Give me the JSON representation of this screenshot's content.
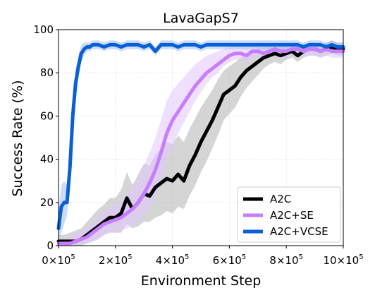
{
  "chart_data": {
    "type": "line",
    "title": "LavaGapS7",
    "xlabel": "Environment Step",
    "ylabel": "Success Rate (%)",
    "xlim": [
      0,
      1000000
    ],
    "ylim": [
      0,
      100
    ],
    "grid": true,
    "legend_position": "bottom-right",
    "x_ticks": [
      {
        "value": 0,
        "base": "0×10",
        "exp": "5"
      },
      {
        "value": 200000,
        "base": "2×10",
        "exp": "5"
      },
      {
        "value": 400000,
        "base": "4×10",
        "exp": "5"
      },
      {
        "value": 600000,
        "base": "6×10",
        "exp": "5"
      },
      {
        "value": 800000,
        "base": "8×10",
        "exp": "5"
      },
      {
        "value": 1000000,
        "base": "10×10",
        "exp": "5"
      }
    ],
    "y_ticks": [
      {
        "value": 0,
        "label": "0"
      },
      {
        "value": 20,
        "label": "20"
      },
      {
        "value": 40,
        "label": "40"
      },
      {
        "value": 60,
        "label": "60"
      },
      {
        "value": 80,
        "label": "80"
      },
      {
        "value": 100,
        "label": "100"
      }
    ],
    "series": [
      {
        "name": "A2C",
        "color": "#000000",
        "band_color": "#b3b3b3",
        "x": [
          0,
          20000,
          40000,
          60000,
          80000,
          100000,
          120000,
          140000,
          160000,
          180000,
          200000,
          220000,
          240000,
          260000,
          280000,
          300000,
          320000,
          340000,
          360000,
          380000,
          400000,
          420000,
          440000,
          460000,
          480000,
          500000,
          520000,
          540000,
          560000,
          580000,
          600000,
          620000,
          640000,
          660000,
          680000,
          700000,
          720000,
          740000,
          760000,
          780000,
          800000,
          820000,
          840000,
          860000,
          880000,
          900000,
          920000,
          940000,
          960000,
          980000,
          1000000
        ],
        "values": [
          2,
          2,
          2,
          2,
          3,
          5,
          7,
          9,
          11,
          13,
          13,
          15,
          22,
          17,
          20,
          24,
          23,
          27,
          29,
          31,
          30,
          33,
          30,
          37,
          42,
          48,
          53,
          58,
          64,
          70,
          72,
          74,
          78,
          81,
          83,
          85,
          87,
          88,
          89,
          88,
          89,
          90,
          88,
          90,
          91,
          91,
          90,
          91,
          92,
          91,
          91
        ],
        "lower": [
          0,
          0,
          0,
          0,
          0,
          1,
          2,
          3,
          5,
          6,
          6,
          6,
          10,
          8,
          9,
          11,
          11,
          13,
          14,
          16,
          15,
          18,
          17,
          23,
          28,
          34,
          39,
          45,
          51,
          58,
          61,
          64,
          69,
          73,
          76,
          79,
          82,
          84,
          85,
          84,
          86,
          87,
          85,
          87,
          88,
          88,
          87,
          88,
          89,
          88,
          88
        ],
        "upper": [
          5,
          5,
          6,
          7,
          8,
          11,
          14,
          17,
          19,
          22,
          22,
          26,
          34,
          28,
          33,
          38,
          37,
          42,
          45,
          48,
          47,
          51,
          48,
          54,
          59,
          64,
          68,
          72,
          77,
          81,
          83,
          85,
          87,
          89,
          90,
          91,
          92,
          92,
          93,
          92,
          93,
          93,
          92,
          93,
          94,
          94,
          93,
          94,
          95,
          94,
          94
        ]
      },
      {
        "name": "A2C+SE",
        "color": "#c77dff",
        "band_color": "#e3c6ff",
        "x": [
          0,
          20000,
          40000,
          60000,
          80000,
          100000,
          120000,
          140000,
          160000,
          180000,
          200000,
          220000,
          240000,
          260000,
          280000,
          300000,
          320000,
          340000,
          360000,
          380000,
          400000,
          420000,
          440000,
          460000,
          480000,
          500000,
          520000,
          540000,
          560000,
          580000,
          600000,
          620000,
          640000,
          660000,
          680000,
          700000,
          720000,
          740000,
          760000,
          780000,
          800000,
          820000,
          840000,
          860000,
          880000,
          900000,
          920000,
          940000,
          960000,
          980000,
          1000000
        ],
        "values": [
          1,
          1,
          1,
          2,
          3,
          4,
          6,
          8,
          10,
          11,
          12,
          13,
          15,
          17,
          20,
          24,
          29,
          35,
          43,
          52,
          58,
          62,
          66,
          70,
          74,
          77,
          80,
          82,
          84,
          86,
          88,
          89,
          89,
          88,
          90,
          90,
          89,
          90,
          91,
          90,
          90,
          91,
          91,
          90,
          91,
          91,
          90,
          91,
          90,
          90,
          90
        ],
        "lower": [
          0,
          0,
          0,
          0,
          1,
          1,
          2,
          3,
          5,
          6,
          6,
          7,
          8,
          9,
          11,
          14,
          18,
          23,
          30,
          39,
          46,
          52,
          57,
          62,
          67,
          71,
          75,
          78,
          80,
          83,
          85,
          86,
          86,
          85,
          87,
          87,
          86,
          87,
          88,
          87,
          87,
          88,
          88,
          87,
          88,
          88,
          87,
          88,
          87,
          87,
          87
        ],
        "upper": [
          3,
          3,
          4,
          6,
          7,
          8,
          11,
          14,
          16,
          18,
          19,
          21,
          24,
          27,
          31,
          37,
          43,
          50,
          58,
          67,
          72,
          75,
          78,
          81,
          84,
          86,
          88,
          89,
          90,
          91,
          92,
          93,
          93,
          92,
          93,
          93,
          92,
          93,
          94,
          93,
          93,
          94,
          94,
          93,
          94,
          94,
          93,
          94,
          93,
          93,
          93
        ]
      },
      {
        "name": "A2C+VCSE",
        "color": "#0b5fd6",
        "band_color": "#9ec1f0",
        "x": [
          0,
          10000,
          20000,
          30000,
          40000,
          50000,
          60000,
          70000,
          80000,
          90000,
          100000,
          110000,
          120000,
          140000,
          160000,
          180000,
          200000,
          220000,
          240000,
          260000,
          280000,
          300000,
          320000,
          340000,
          360000,
          380000,
          400000,
          420000,
          440000,
          460000,
          480000,
          500000,
          520000,
          540000,
          560000,
          580000,
          600000,
          620000,
          640000,
          660000,
          680000,
          700000,
          720000,
          740000,
          760000,
          780000,
          800000,
          820000,
          840000,
          860000,
          880000,
          900000,
          920000,
          940000,
          960000,
          980000,
          1000000
        ],
        "values": [
          8,
          18,
          20,
          20,
          36,
          60,
          75,
          83,
          89,
          91,
          92,
          92,
          93,
          93,
          92,
          93,
          93,
          92,
          93,
          93,
          93,
          92,
          93,
          90,
          93,
          93,
          93,
          92,
          93,
          93,
          93,
          92,
          93,
          93,
          93,
          93,
          93,
          93,
          93,
          93,
          93,
          93,
          93,
          93,
          93,
          93,
          93,
          93,
          93,
          92,
          93,
          93,
          93,
          92,
          93,
          92,
          92
        ],
        "lower": [
          0,
          6,
          10,
          14,
          26,
          50,
          68,
          78,
          85,
          88,
          90,
          90,
          91,
          91,
          90,
          91,
          91,
          90,
          91,
          91,
          91,
          90,
          91,
          88,
          91,
          91,
          91,
          90,
          91,
          91,
          91,
          90,
          91,
          91,
          91,
          91,
          91,
          91,
          91,
          91,
          91,
          91,
          91,
          91,
          91,
          91,
          91,
          91,
          91,
          90,
          91,
          91,
          91,
          90,
          91,
          90,
          90
        ],
        "upper": [
          16,
          28,
          30,
          28,
          46,
          70,
          82,
          88,
          93,
          94,
          94,
          94,
          95,
          95,
          94,
          95,
          95,
          94,
          95,
          95,
          95,
          94,
          95,
          92,
          95,
          95,
          95,
          94,
          95,
          95,
          95,
          94,
          95,
          95,
          95,
          95,
          95,
          95,
          95,
          95,
          95,
          95,
          95,
          95,
          95,
          95,
          95,
          95,
          95,
          94,
          95,
          95,
          95,
          94,
          95,
          94,
          94
        ]
      }
    ]
  }
}
